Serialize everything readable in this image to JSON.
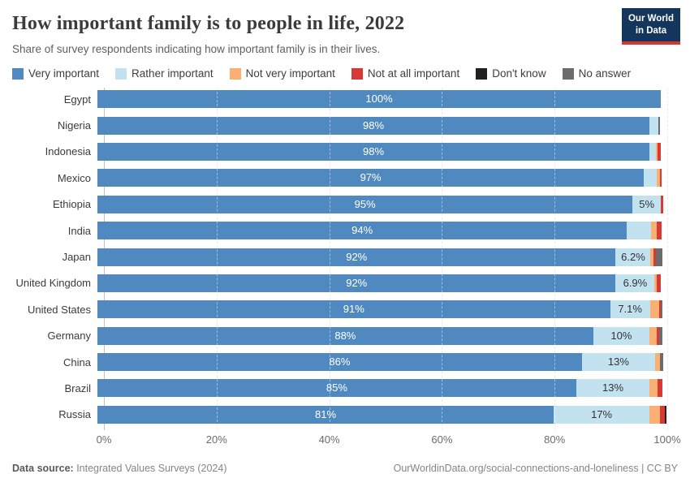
{
  "header": {
    "title": "How important family is to people in life, 2022",
    "subtitle": "Share of survey respondents indicating how important family is in their lives.",
    "logo_line1": "Our World",
    "logo_line2": "in Data"
  },
  "legend": {
    "items": [
      {
        "label": "Very important",
        "color": "#5089bf"
      },
      {
        "label": "Rather important",
        "color": "#c2e2f0"
      },
      {
        "label": "Not very important",
        "color": "#f9b072"
      },
      {
        "label": "Not at all important",
        "color": "#d73a34"
      },
      {
        "label": "Don't know",
        "color": "#212121"
      },
      {
        "label": "No answer",
        "color": "#6c6c6c"
      }
    ]
  },
  "chart_data": {
    "type": "bar",
    "orientation": "horizontal",
    "stacked": true,
    "title": "How important family is to people in life, 2022",
    "subtitle": "Share of survey respondents indicating how important family is in their lives.",
    "categories": [
      "Egypt",
      "Nigeria",
      "Indonesia",
      "Mexico",
      "Ethiopia",
      "India",
      "Japan",
      "United Kingdom",
      "United States",
      "Germany",
      "China",
      "Brazil",
      "Russia"
    ],
    "series": [
      {
        "key": "very-important",
        "name": "Very important",
        "color": "#5089bf",
        "values": [
          100,
          98,
          98,
          97,
          95,
          94,
          92,
          92,
          91,
          88,
          86,
          85,
          81
        ]
      },
      {
        "key": "rather-important",
        "name": "Rather important",
        "color": "#c2e2f0",
        "values": [
          0,
          1.5,
          1.2,
          2.3,
          5,
          4.3,
          6.2,
          6.9,
          7.1,
          10,
          13,
          13,
          17
        ]
      },
      {
        "key": "not-very-important",
        "name": "Not very important",
        "color": "#f9b072",
        "values": [
          0,
          0,
          0.2,
          0.6,
          0,
          1.0,
          0.5,
          0.4,
          1.6,
          1.3,
          0.9,
          1.4,
          1.9
        ]
      },
      {
        "key": "not-at-all-important",
        "name": "Not at all important",
        "color": "#d73a34",
        "values": [
          0,
          0,
          0.6,
          0.2,
          0.5,
          0.8,
          0.4,
          0.7,
          0.3,
          0.4,
          0,
          0.9,
          0.8
        ]
      },
      {
        "key": "dont-know",
        "name": "Don't know",
        "color": "#212121",
        "values": [
          0,
          0,
          0,
          0,
          0,
          0,
          0,
          0,
          0,
          0,
          0,
          0,
          0.3
        ]
      },
      {
        "key": "no-answer",
        "name": "No answer",
        "color": "#6c6c6c",
        "values": [
          0,
          0.3,
          0,
          0,
          0,
          0,
          1.2,
          0,
          0.3,
          0.6,
          0.6,
          0,
          0
        ]
      }
    ],
    "bar_labels": {
      "primary": [
        "100%",
        "98%",
        "98%",
        "97%",
        "95%",
        "94%",
        "92%",
        "92%",
        "91%",
        "88%",
        "86%",
        "85%",
        "81%"
      ],
      "secondary": [
        "",
        "",
        "",
        "",
        "5%",
        "",
        "6.2%",
        "6.9%",
        "7.1%",
        "10%",
        "13%",
        "13%",
        "17%"
      ]
    },
    "xlim": [
      0,
      100
    ],
    "x_ticks": [
      0,
      20,
      40,
      60,
      80,
      100
    ],
    "x_tick_labels": [
      "0%",
      "20%",
      "40%",
      "60%",
      "80%",
      "100%"
    ],
    "xlabel": "",
    "ylabel": "",
    "grid": "vertical-dashed",
    "legend_position": "top"
  },
  "footer": {
    "datasource_prefix": "Data source:",
    "datasource_text": " Integrated Values Surveys (2024)",
    "credit": "OurWorldinData.org/social-connections-and-loneliness | CC BY"
  }
}
